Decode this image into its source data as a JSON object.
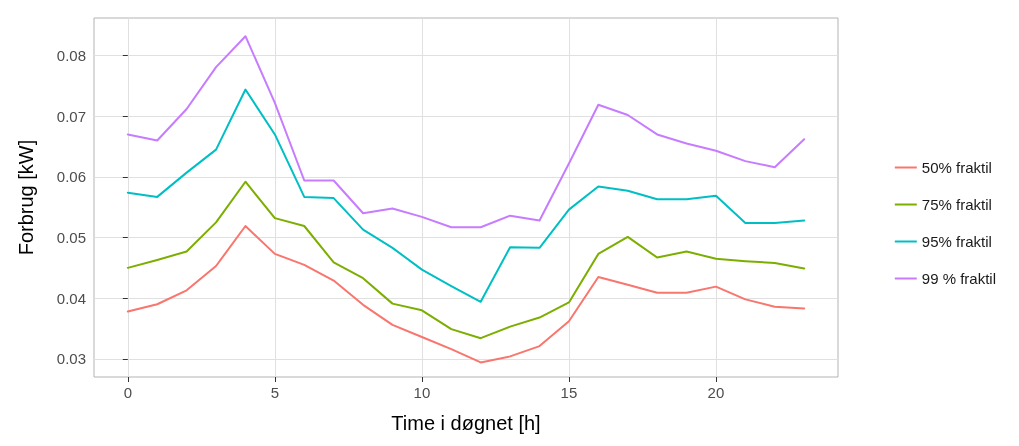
{
  "chart_data": {
    "type": "line",
    "xlabel": "Time i døgnet [h]",
    "ylabel": "Forbrug [kW]",
    "x": [
      0,
      1,
      2,
      3,
      4,
      5,
      6,
      7,
      8,
      9,
      10,
      11,
      12,
      13,
      14,
      15,
      16,
      17,
      18,
      19,
      20,
      21,
      22,
      23
    ],
    "xlim": [
      -1.15,
      24.15
    ],
    "xticks": [
      0,
      5,
      10,
      15,
      20
    ],
    "ylim": [
      0.027,
      0.0862
    ],
    "yticks": [
      0.03,
      0.04,
      0.05,
      0.06,
      0.07,
      0.08
    ],
    "grid": true,
    "legend": "right",
    "marker": "none",
    "line_style": "solid",
    "series": [
      {
        "name": "50% fraktil",
        "color": "#f8766d",
        "values": [
          0.0378,
          0.039,
          0.0413,
          0.0453,
          0.0519,
          0.0473,
          0.0455,
          0.0429,
          0.0389,
          0.0356,
          0.0336,
          0.0316,
          0.0294,
          0.0304,
          0.0321,
          0.0362,
          0.0435,
          0.0422,
          0.0409,
          0.0409,
          0.0419,
          0.0398,
          0.0386,
          0.0383
        ]
      },
      {
        "name": "75% fraktil",
        "color": "#7cae00",
        "values": [
          0.045,
          0.0463,
          0.0477,
          0.0525,
          0.0592,
          0.0532,
          0.0519,
          0.0459,
          0.0433,
          0.0391,
          0.038,
          0.0349,
          0.0334,
          0.0353,
          0.0368,
          0.0393,
          0.0473,
          0.0501,
          0.0467,
          0.0477,
          0.0465,
          0.0461,
          0.0458,
          0.0449
        ]
      },
      {
        "name": "95% fraktil",
        "color": "#00bfc4",
        "values": [
          0.0574,
          0.0567,
          0.0607,
          0.0645,
          0.0744,
          0.067,
          0.0567,
          0.0565,
          0.0513,
          0.0483,
          0.0447,
          0.042,
          0.0394,
          0.0484,
          0.0483,
          0.0546,
          0.0584,
          0.0577,
          0.0563,
          0.0563,
          0.0569,
          0.0524,
          0.0524,
          0.0528
        ]
      },
      {
        "name": "99 % fraktil",
        "color": "#c77cff",
        "values": [
          0.067,
          0.066,
          0.0712,
          0.0781,
          0.0832,
          0.0722,
          0.0594,
          0.0594,
          0.054,
          0.0548,
          0.0534,
          0.0517,
          0.0517,
          0.0536,
          0.0528,
          0.0622,
          0.0719,
          0.0702,
          0.067,
          0.0655,
          0.0643,
          0.0626,
          0.0616,
          0.0662
        ]
      }
    ]
  }
}
